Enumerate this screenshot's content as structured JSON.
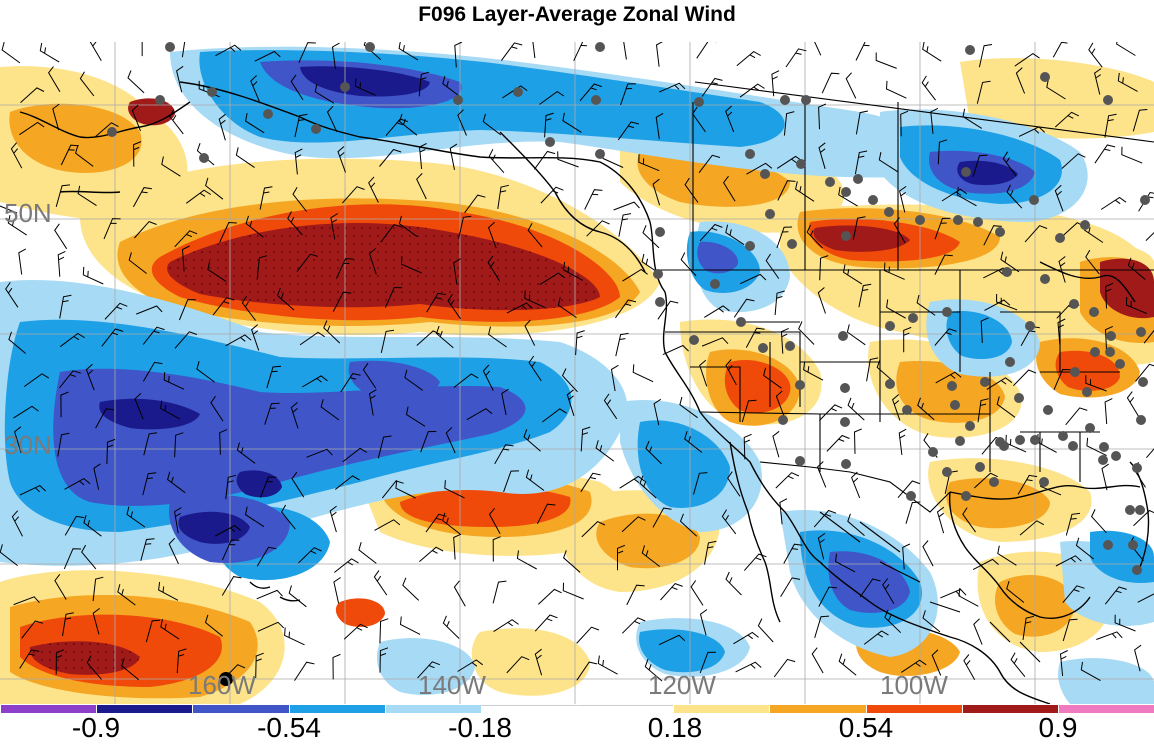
{
  "title": "F096 Layer-Average Zonal Wind",
  "lat_labels": [
    "50N",
    "30N"
  ],
  "lon_labels": [
    "160W",
    "140W",
    "120W",
    "100W"
  ],
  "colorbar": {
    "colors": [
      "#8c3fc8",
      "#1a1a8c",
      "#3f55c8",
      "#1ea0e6",
      "#a6daf5",
      "#ffffff",
      "#ffffff",
      "#fde38a",
      "#f5a623",
      "#f04a0a",
      "#a11a1a",
      "#f07ac0"
    ],
    "labels": [
      "-0.9",
      "-0.54",
      "-0.18",
      "0.18",
      "0.54",
      "0.9"
    ]
  },
  "palette": {
    "background": "#ffffff",
    "coast": "#000000",
    "grid": "#aaaaaa",
    "station": "#555555"
  }
}
